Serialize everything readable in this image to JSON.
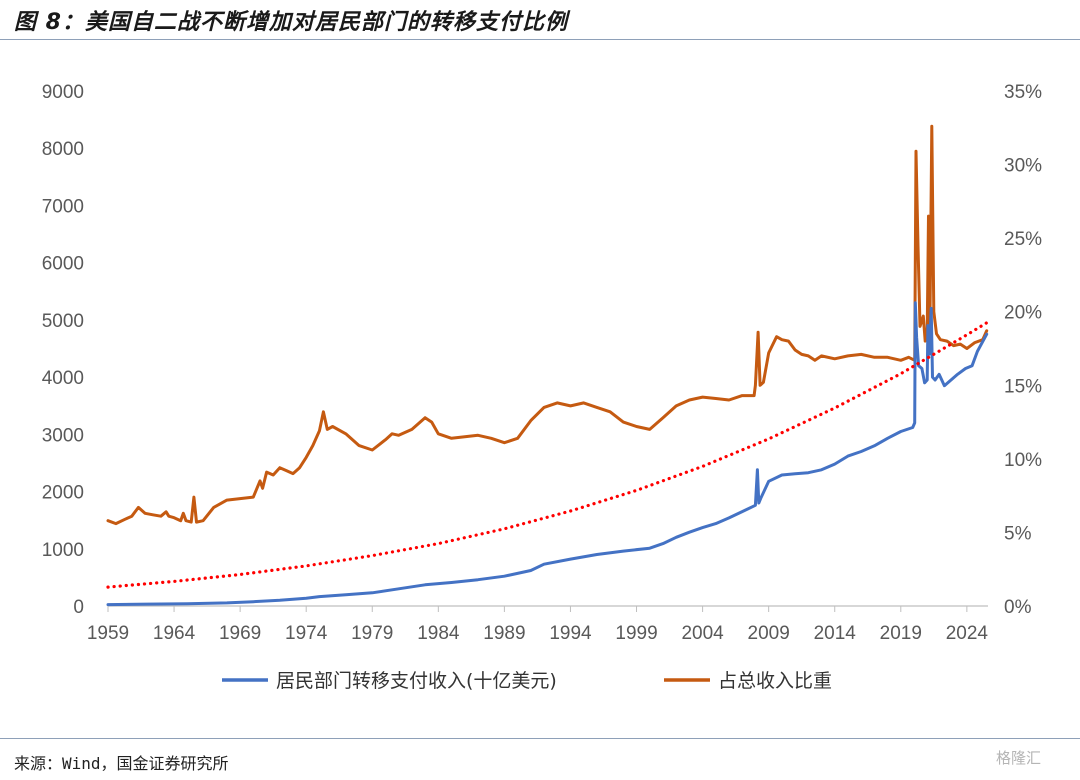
{
  "title": "图 8：美国自二战不断增加对居民部门的转移支付比例",
  "source": "来源：Wind，国金证券研究所",
  "watermark": "格隆汇",
  "chart_data": {
    "type": "line",
    "title": "图 8：美国自二战不断增加对居民部门的转移支付比例",
    "xlabel": "",
    "ylabel": "",
    "y2label": "",
    "xlim": [
      1959,
      2025.6
    ],
    "ylim": [
      0,
      9000
    ],
    "y2lim": [
      0,
      0.35
    ],
    "x_ticks": [
      "1959",
      "1964",
      "1969",
      "1974",
      "1979",
      "1984",
      "1989",
      "1994",
      "1999",
      "2004",
      "2009",
      "2014",
      "2019",
      "2024"
    ],
    "y_ticks": [
      "0",
      "1000",
      "2000",
      "3000",
      "4000",
      "5000",
      "6000",
      "7000",
      "8000",
      "9000"
    ],
    "y2_ticks": [
      "0%",
      "5%",
      "10%",
      "15%",
      "20%",
      "25%",
      "30%",
      "35%"
    ],
    "grid": false,
    "legend_position": "bottom",
    "series": [
      {
        "name": "居民部门转移支付收入(十亿美元)",
        "axis": "left",
        "color": "#4472c4",
        "style": "solid",
        "points": [
          [
            1959,
            25
          ],
          [
            1962,
            33
          ],
          [
            1965,
            40
          ],
          [
            1968,
            55
          ],
          [
            1970,
            75
          ],
          [
            1972,
            100
          ],
          [
            1974,
            135
          ],
          [
            1975,
            165
          ],
          [
            1977,
            195
          ],
          [
            1979,
            230
          ],
          [
            1981,
            300
          ],
          [
            1983,
            370
          ],
          [
            1985,
            410
          ],
          [
            1987,
            460
          ],
          [
            1989,
            520
          ],
          [
            1991,
            620
          ],
          [
            1992,
            730
          ],
          [
            1994,
            820
          ],
          [
            1996,
            900
          ],
          [
            1998,
            960
          ],
          [
            2000,
            1010
          ],
          [
            2001,
            1090
          ],
          [
            2002,
            1200
          ],
          [
            2003,
            1290
          ],
          [
            2004,
            1370
          ],
          [
            2005,
            1440
          ],
          [
            2006,
            1540
          ],
          [
            2007,
            1650
          ],
          [
            2008.0,
            1760
          ],
          [
            2008.15,
            2380
          ],
          [
            2008.25,
            1800
          ],
          [
            2008.4,
            1880
          ],
          [
            2009,
            2180
          ],
          [
            2010,
            2290
          ],
          [
            2011,
            2310
          ],
          [
            2012,
            2330
          ],
          [
            2013,
            2380
          ],
          [
            2014,
            2480
          ],
          [
            2015,
            2620
          ],
          [
            2016,
            2700
          ],
          [
            2017,
            2800
          ],
          [
            2018,
            2930
          ],
          [
            2019,
            3050
          ],
          [
            2019.9,
            3120
          ],
          [
            2020.05,
            3200
          ],
          [
            2020.1,
            5300
          ],
          [
            2020.2,
            4700
          ],
          [
            2020.35,
            4200
          ],
          [
            2020.6,
            4150
          ],
          [
            2020.8,
            3900
          ],
          [
            2021.0,
            3950
          ],
          [
            2021.05,
            4900
          ],
          [
            2021.15,
            4400
          ],
          [
            2021.3,
            5200
          ],
          [
            2021.4,
            4000
          ],
          [
            2021.6,
            3950
          ],
          [
            2021.9,
            4050
          ],
          [
            2022.3,
            3850
          ],
          [
            2022.8,
            3950
          ],
          [
            2023.3,
            4050
          ],
          [
            2023.9,
            4150
          ],
          [
            2024.4,
            4200
          ],
          [
            2024.8,
            4450
          ],
          [
            2025.5,
            4750
          ]
        ]
      },
      {
        "name": "占总收入比重",
        "axis": "right",
        "color": "#c55a11",
        "style": "solid",
        "points": [
          [
            1959,
            0.058
          ],
          [
            1959.6,
            0.056
          ],
          [
            1960.3,
            0.059
          ],
          [
            1960.8,
            0.061
          ],
          [
            1961.3,
            0.067
          ],
          [
            1961.8,
            0.063
          ],
          [
            1962.4,
            0.062
          ],
          [
            1963.0,
            0.061
          ],
          [
            1963.4,
            0.064
          ],
          [
            1963.6,
            0.061
          ],
          [
            1964.0,
            0.06
          ],
          [
            1964.5,
            0.058
          ],
          [
            1964.7,
            0.063
          ],
          [
            1964.9,
            0.058
          ],
          [
            1965.3,
            0.057
          ],
          [
            1965.5,
            0.074
          ],
          [
            1965.7,
            0.057
          ],
          [
            1966.2,
            0.058
          ],
          [
            1967.0,
            0.067
          ],
          [
            1968.0,
            0.072
          ],
          [
            1969.0,
            0.073
          ],
          [
            1970.0,
            0.074
          ],
          [
            1970.5,
            0.085
          ],
          [
            1970.7,
            0.08
          ],
          [
            1971.0,
            0.091
          ],
          [
            1971.5,
            0.089
          ],
          [
            1972.0,
            0.094
          ],
          [
            1972.5,
            0.092
          ],
          [
            1973.0,
            0.09
          ],
          [
            1973.5,
            0.094
          ],
          [
            1974.0,
            0.101
          ],
          [
            1974.5,
            0.109
          ],
          [
            1975.0,
            0.119
          ],
          [
            1975.3,
            0.132
          ],
          [
            1975.6,
            0.12
          ],
          [
            1976.0,
            0.122
          ],
          [
            1977.0,
            0.117
          ],
          [
            1978.0,
            0.109
          ],
          [
            1979.0,
            0.106
          ],
          [
            1980.0,
            0.113
          ],
          [
            1980.5,
            0.117
          ],
          [
            1981.0,
            0.116
          ],
          [
            1982.0,
            0.12
          ],
          [
            1983.0,
            0.128
          ],
          [
            1983.5,
            0.125
          ],
          [
            1984.0,
            0.117
          ],
          [
            1985.0,
            0.114
          ],
          [
            1986.0,
            0.115
          ],
          [
            1987.0,
            0.116
          ],
          [
            1988.0,
            0.114
          ],
          [
            1989.0,
            0.111
          ],
          [
            1990.0,
            0.114
          ],
          [
            1991.0,
            0.126
          ],
          [
            1992.0,
            0.135
          ],
          [
            1993.0,
            0.138
          ],
          [
            1994.0,
            0.136
          ],
          [
            1995.0,
            0.138
          ],
          [
            1996.0,
            0.135
          ],
          [
            1997.0,
            0.132
          ],
          [
            1998.0,
            0.125
          ],
          [
            1999.0,
            0.122
          ],
          [
            2000.0,
            0.12
          ],
          [
            2001.0,
            0.128
          ],
          [
            2002.0,
            0.136
          ],
          [
            2003.0,
            0.14
          ],
          [
            2004.0,
            0.142
          ],
          [
            2005.0,
            0.141
          ],
          [
            2006.0,
            0.14
          ],
          [
            2007.0,
            0.143
          ],
          [
            2007.9,
            0.143
          ],
          [
            2008.0,
            0.15
          ],
          [
            2008.2,
            0.186
          ],
          [
            2008.35,
            0.15
          ],
          [
            2008.6,
            0.152
          ],
          [
            2009.0,
            0.172
          ],
          [
            2009.6,
            0.183
          ],
          [
            2010.0,
            0.181
          ],
          [
            2010.5,
            0.18
          ],
          [
            2011.0,
            0.174
          ],
          [
            2011.5,
            0.171
          ],
          [
            2012.0,
            0.17
          ],
          [
            2012.5,
            0.167
          ],
          [
            2013.0,
            0.17
          ],
          [
            2014.0,
            0.168
          ],
          [
            2015.0,
            0.17
          ],
          [
            2016.0,
            0.171
          ],
          [
            2017.0,
            0.169
          ],
          [
            2018.0,
            0.169
          ],
          [
            2019.0,
            0.167
          ],
          [
            2019.6,
            0.169
          ],
          [
            2020.05,
            0.167
          ],
          [
            2020.15,
            0.309
          ],
          [
            2020.3,
            0.245
          ],
          [
            2020.45,
            0.19
          ],
          [
            2020.7,
            0.197
          ],
          [
            2020.85,
            0.18
          ],
          [
            2021.0,
            0.185
          ],
          [
            2021.1,
            0.265
          ],
          [
            2021.2,
            0.19
          ],
          [
            2021.35,
            0.326
          ],
          [
            2021.5,
            0.2
          ],
          [
            2021.7,
            0.185
          ],
          [
            2022.0,
            0.181
          ],
          [
            2022.5,
            0.18
          ],
          [
            2023.0,
            0.177
          ],
          [
            2023.5,
            0.178
          ],
          [
            2024.0,
            0.175
          ],
          [
            2024.6,
            0.179
          ],
          [
            2025.2,
            0.181
          ],
          [
            2025.5,
            0.187
          ]
        ]
      },
      {
        "name": "",
        "axis": "left",
        "color": "#ff0000",
        "style": "dotted",
        "trendline": true,
        "points": [
          [
            1959,
            330
          ],
          [
            1964,
            430
          ],
          [
            1969,
            550
          ],
          [
            1974,
            700
          ],
          [
            1979,
            880
          ],
          [
            1984,
            1090
          ],
          [
            1989,
            1350
          ],
          [
            1994,
            1660
          ],
          [
            1999,
            2020
          ],
          [
            2004,
            2440
          ],
          [
            2009,
            2920
          ],
          [
            2014,
            3460
          ],
          [
            2019,
            4060
          ],
          [
            2024,
            4740
          ],
          [
            2025.5,
            4950
          ]
        ]
      }
    ]
  }
}
